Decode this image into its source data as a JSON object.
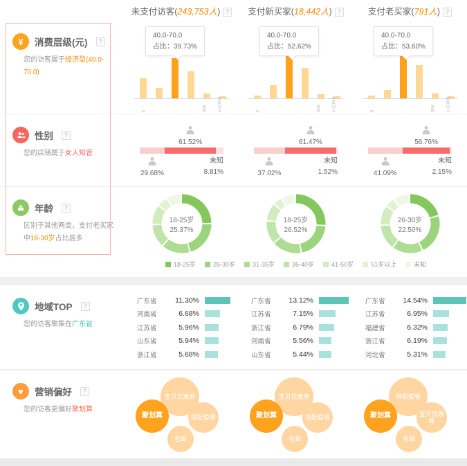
{
  "help_icon": "?",
  "header": {
    "columns": [
      {
        "prefix": "未支付访客(",
        "count": "243,753人",
        "suffix": ")"
      },
      {
        "prefix": "支付新买家(",
        "count": "18,442人",
        "suffix": ")"
      },
      {
        "prefix": "支付老买家(",
        "count": "791人",
        "suffix": ")"
      }
    ]
  },
  "sections": {
    "consumption": {
      "title": "消费层级(元)",
      "icon_glyph": "¥",
      "desc_prefix": "您的访客属于",
      "desc_highlight": "经济型(40.0-70.0)"
    },
    "gender": {
      "title": "性别",
      "desc_prefix": "您的店铺属于",
      "desc_highlight": "女人知音"
    },
    "age": {
      "title": "年龄",
      "desc_prefix": "区别于其他两类，支付老买家中",
      "desc_highlight": "18-30岁",
      "desc_suffix": "占比居多"
    },
    "region": {
      "title": "地域TOP",
      "desc_prefix": "您的访客聚集在",
      "desc_highlight": "广东省"
    },
    "marketing": {
      "title": "营销偏好",
      "icon_glyph": "♥",
      "desc_prefix": "您的访客更偏好",
      "desc_highlight": "聚划算"
    }
  },
  "chart_data": [
    {
      "type": "bar",
      "name": "consumption",
      "tooltip_range": "40.0-70.0",
      "tooltip_share_prefix": "占比：",
      "x_ticks": [
        "0",
        "600",
        "600以上"
      ],
      "colors": {
        "bar": "#FFD895",
        "highlight": "#FFA11B"
      },
      "columns": [
        {
          "share": "39.73%",
          "highlight_index": 2,
          "values": [
            20,
            10,
            39.73,
            27,
            5,
            2
          ]
        },
        {
          "share": "52.62%",
          "highlight_index": 2,
          "values": [
            3,
            13,
            52.62,
            30,
            4,
            2
          ]
        },
        {
          "share": "53.60%",
          "highlight_index": 2,
          "values": [
            3,
            8,
            53.6,
            33,
            5,
            2
          ]
        }
      ]
    },
    {
      "type": "bar-stacked",
      "name": "gender",
      "unknown_label": "未知",
      "categories": [
        "男",
        "女",
        "未知"
      ],
      "colors": [
        "#F8CFCB",
        "#F96B6B",
        "#FADFDC"
      ],
      "columns": [
        {
          "values": [
            29.68,
            61.52,
            8.81
          ],
          "labels": [
            "29.68%",
            "61.52%",
            "8.81%"
          ]
        },
        {
          "values": [
            37.02,
            61.47,
            1.52
          ],
          "labels": [
            "37.02%",
            "61.47%",
            "1.52%"
          ]
        },
        {
          "values": [
            41.09,
            56.76,
            2.15
          ],
          "labels": [
            "41.09%",
            "56.76%",
            "2.15%"
          ]
        }
      ]
    },
    {
      "type": "pie",
      "name": "age",
      "legend": [
        "18-25岁",
        "26-30岁",
        "31-35岁",
        "36-40岁",
        "41-50岁",
        "51岁以上",
        "未知"
      ],
      "colors": [
        "#83C75D",
        "#9CD37D",
        "#AEDC93",
        "#C0E4A9",
        "#D2EBBF",
        "#E2F2D3",
        "#EFF8E7"
      ],
      "columns": [
        {
          "center_label": "18-25岁",
          "center_value": "25.37%",
          "values": [
            25.37,
            20.5,
            16,
            13,
            11,
            6,
            8.13
          ]
        },
        {
          "center_label": "18-25岁",
          "center_value": "26.52%",
          "values": [
            26.52,
            21,
            16.5,
            13,
            10,
            5,
            7.98
          ]
        },
        {
          "center_label": "26-30岁",
          "center_value": "22.50%",
          "values": [
            21,
            22.5,
            17,
            14,
            11,
            5.5,
            9
          ]
        }
      ]
    },
    {
      "type": "bar",
      "name": "region",
      "colors": {
        "first": "#5FC4B8",
        "rest": "#A9E2DC"
      },
      "columns": [
        {
          "rows": [
            {
              "name": "广东省",
              "pct": "11.30%",
              "value": 11.3
            },
            {
              "name": "河南省",
              "pct": "6.68%",
              "value": 6.68
            },
            {
              "name": "江苏省",
              "pct": "5.96%",
              "value": 5.96
            },
            {
              "name": "山东省",
              "pct": "5.94%",
              "value": 5.94
            },
            {
              "name": "浙江省",
              "pct": "5.68%",
              "value": 5.68
            }
          ]
        },
        {
          "rows": [
            {
              "name": "广东省",
              "pct": "13.12%",
              "value": 13.12
            },
            {
              "name": "江苏省",
              "pct": "7.15%",
              "value": 7.15
            },
            {
              "name": "浙江省",
              "pct": "6.79%",
              "value": 6.79
            },
            {
              "name": "河南省",
              "pct": "5.56%",
              "value": 5.56
            },
            {
              "name": "山东省",
              "pct": "5.44%",
              "value": 5.44
            }
          ]
        },
        {
          "rows": [
            {
              "name": "广东省",
              "pct": "14.54%",
              "value": 14.54
            },
            {
              "name": "江苏省",
              "pct": "6.95%",
              "value": 6.95
            },
            {
              "name": "福建省",
              "pct": "6.32%",
              "value": 6.32
            },
            {
              "name": "浙江省",
              "pct": "6.19%",
              "value": 6.19
            },
            {
              "name": "河北省",
              "pct": "5.31%",
              "value": 5.31
            }
          ]
        }
      ]
    },
    {
      "type": "bubble",
      "name": "marketing",
      "colors": {
        "main": "#FFA21D",
        "light": "#FFD5A1"
      },
      "columns": [
        {
          "bubbles": [
            {
              "pos": "main",
              "label": "聚划算"
            },
            {
              "pos": "top",
              "label": "宝贝优惠券"
            },
            {
              "pos": "right",
              "label": "搭配套餐"
            },
            {
              "pos": "bottom",
              "label": "包邮"
            }
          ]
        },
        {
          "bubbles": [
            {
              "pos": "main",
              "label": "聚划算"
            },
            {
              "pos": "top",
              "label": "宝贝优惠券"
            },
            {
              "pos": "right",
              "label": "搭配套餐"
            },
            {
              "pos": "bottom",
              "label": "包邮"
            }
          ]
        },
        {
          "bubbles": [
            {
              "pos": "main",
              "label": "聚划算"
            },
            {
              "pos": "top",
              "label": "搭配套餐"
            },
            {
              "pos": "right",
              "label": "宝贝优惠券"
            },
            {
              "pos": "bottom",
              "label": "包邮"
            }
          ]
        }
      ]
    }
  ]
}
